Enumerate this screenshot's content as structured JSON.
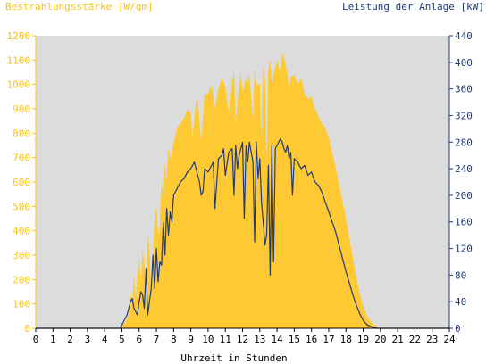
{
  "chart_data": {
    "type": "area",
    "title_left": "Bestrahlungsstärke [W/qm]",
    "title_right": "Leistung der Anlage [kW]",
    "xlabel": "Uhrzeit in Stunden",
    "xlim": [
      0,
      24
    ],
    "x_ticks": [
      "0",
      "1",
      "2",
      "3",
      "4",
      "5",
      "6",
      "7",
      "8",
      "9",
      "10",
      "11",
      "12",
      "13",
      "14",
      "15",
      "16",
      "17",
      "18",
      "19",
      "20",
      "21",
      "22",
      "23",
      "24"
    ],
    "y_left_lim": [
      0,
      1200
    ],
    "y_left_ticks": [
      "0",
      "100",
      "200",
      "300",
      "400",
      "500",
      "600",
      "700",
      "800",
      "900",
      "1000",
      "1100",
      "1200"
    ],
    "y_right_lim": [
      0,
      440
    ],
    "y_right_ticks": [
      "0",
      "40",
      "80",
      "120",
      "160",
      "200",
      "240",
      "280",
      "320",
      "360",
      "400",
      "440"
    ],
    "colors": {
      "irradiance": "#ffc933",
      "power": "#1f3a78",
      "plot_bg": "#dcdcdc",
      "left_axis": "#ffc20e",
      "right_axis": "#1f3a78"
    },
    "series": [
      {
        "name": "Bestrahlungsstärke [W/qm]",
        "axis": "left",
        "x": [
          0,
          4.8,
          5.0,
          5.2,
          5.4,
          5.5,
          5.6,
          5.7,
          5.8,
          6.0,
          6.1,
          6.2,
          6.3,
          6.4,
          6.5,
          6.6,
          6.7,
          6.8,
          6.9,
          7.0,
          7.1,
          7.2,
          7.3,
          7.4,
          7.5,
          7.6,
          7.7,
          7.8,
          8.0,
          8.2,
          8.4,
          8.6,
          8.8,
          9.0,
          9.1,
          9.3,
          9.4,
          9.6,
          9.8,
          10.0,
          10.2,
          10.4,
          10.6,
          10.8,
          11.0,
          11.2,
          11.4,
          11.5,
          11.6,
          11.8,
          11.9,
          12.0,
          12.2,
          12.3,
          12.4,
          12.6,
          12.7,
          12.8,
          13.0,
          13.1,
          13.2,
          13.3,
          13.4,
          13.5,
          13.6,
          13.7,
          13.8,
          14.0,
          14.2,
          14.3,
          14.4,
          14.5,
          14.6,
          14.7,
          14.8,
          15.0,
          15.2,
          15.4,
          15.6,
          15.8,
          16.0,
          16.2,
          16.4,
          16.6,
          16.8,
          17.0,
          17.2,
          17.4,
          17.6,
          17.8,
          18.0,
          18.2,
          18.4,
          18.6,
          18.8,
          19.0,
          19.2,
          19.4,
          19.6,
          19.8,
          20.0,
          20.2,
          20.4,
          20.6,
          21.0,
          24
        ],
        "values": [
          0,
          0,
          10,
          25,
          60,
          150,
          80,
          220,
          120,
          290,
          180,
          330,
          260,
          150,
          400,
          330,
          140,
          280,
          460,
          500,
          380,
          420,
          600,
          540,
          680,
          600,
          740,
          690,
          760,
          820,
          840,
          860,
          900,
          880,
          780,
          930,
          940,
          760,
          960,
          960,
          1000,
          900,
          980,
          1030,
          990,
          880,
          1010,
          1060,
          840,
          990,
          1050,
          960,
          1030,
          1000,
          1040,
          850,
          1060,
          1000,
          1000,
          780,
          1080,
          1020,
          680,
          1060,
          1100,
          1000,
          1040,
          1100,
          1050,
          1130,
          1110,
          1080,
          1040,
          980,
          1030,
          1040,
          1000,
          1030,
          960,
          940,
          950,
          900,
          870,
          840,
          820,
          780,
          720,
          660,
          590,
          520,
          450,
          370,
          290,
          210,
          140,
          90,
          55,
          30,
          15,
          5,
          0,
          0,
          0,
          0,
          0,
          0
        ]
      },
      {
        "name": "Leistung der Anlage [kW]",
        "axis": "right",
        "x": [
          0,
          4.9,
          5.1,
          5.3,
          5.5,
          5.6,
          5.7,
          5.8,
          5.9,
          6.0,
          6.1,
          6.2,
          6.3,
          6.4,
          6.5,
          6.6,
          6.7,
          6.8,
          6.9,
          7.0,
          7.1,
          7.2,
          7.3,
          7.4,
          7.5,
          7.6,
          7.7,
          7.8,
          7.9,
          8.0,
          8.2,
          8.4,
          8.6,
          8.8,
          9.0,
          9.2,
          9.4,
          9.5,
          9.6,
          9.7,
          9.8,
          10.0,
          10.2,
          10.3,
          10.4,
          10.6,
          10.8,
          10.9,
          11.0,
          11.2,
          11.4,
          11.5,
          11.6,
          11.7,
          11.8,
          12.0,
          12.1,
          12.2,
          12.3,
          12.4,
          12.6,
          12.7,
          12.8,
          12.9,
          13.0,
          13.1,
          13.2,
          13.3,
          13.4,
          13.5,
          13.6,
          13.7,
          13.8,
          13.9,
          14.0,
          14.1,
          14.2,
          14.3,
          14.4,
          14.5,
          14.6,
          14.7,
          14.8,
          14.9,
          15.0,
          15.2,
          15.4,
          15.6,
          15.8,
          16.0,
          16.2,
          16.4,
          16.6,
          16.8,
          17.0,
          17.2,
          17.4,
          17.6,
          17.8,
          18.0,
          18.2,
          18.4,
          18.6,
          18.8,
          19.0,
          19.2,
          19.4,
          19.6,
          19.8,
          20.0,
          20.2,
          20.3,
          20.5,
          20.7,
          24
        ],
        "values": [
          0,
          0,
          10,
          20,
          40,
          45,
          30,
          25,
          20,
          40,
          55,
          50,
          30,
          90,
          20,
          40,
          60,
          110,
          60,
          120,
          70,
          100,
          95,
          160,
          110,
          180,
          140,
          175,
          160,
          200,
          210,
          220,
          225,
          235,
          240,
          250,
          230,
          220,
          200,
          205,
          240,
          235,
          245,
          250,
          180,
          255,
          260,
          270,
          230,
          265,
          270,
          200,
          275,
          240,
          260,
          280,
          165,
          275,
          250,
          280,
          250,
          130,
          280,
          225,
          255,
          190,
          160,
          125,
          140,
          245,
          80,
          275,
          100,
          270,
          275,
          280,
          285,
          280,
          270,
          265,
          275,
          255,
          265,
          200,
          255,
          250,
          240,
          245,
          230,
          235,
          220,
          215,
          205,
          190,
          175,
          160,
          145,
          125,
          105,
          85,
          68,
          50,
          35,
          22,
          12,
          6,
          3,
          1,
          0,
          0,
          0,
          0,
          0,
          0,
          0
        ]
      }
    ]
  }
}
